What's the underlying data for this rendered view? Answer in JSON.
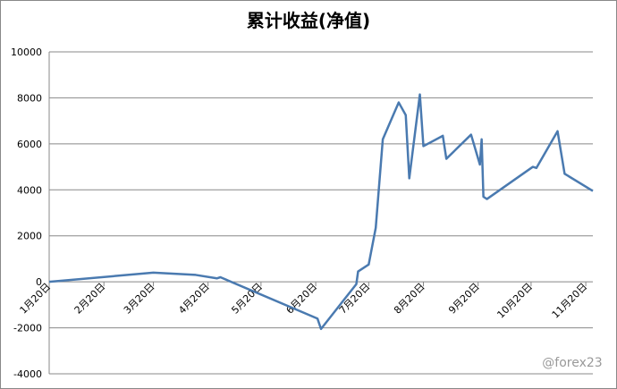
{
  "chart_data": {
    "type": "line",
    "title": "累计收益(净值)",
    "x": [
      "01-20",
      "03-20",
      "04-13",
      "04-25",
      "04-27",
      "06-21",
      "06-23",
      "07-13",
      "07-14",
      "07-20",
      "07-24",
      "07-28",
      "08-06",
      "08-10",
      "08-12",
      "08-18",
      "08-20",
      "08-31",
      "09-02",
      "09-16",
      "09-21",
      "09-22",
      "09-23",
      "09-25",
      "10-21",
      "10-23",
      "11-04",
      "11-08",
      "11-24"
    ],
    "series": [
      {
        "name": "累计收益",
        "color": "#4a7ab0",
        "values": [
          0,
          400,
          300,
          150,
          200,
          -1600,
          -2050,
          -100,
          450,
          750,
          2350,
          6200,
          7800,
          7250,
          4500,
          8150,
          5900,
          6350,
          5350,
          6400,
          5100,
          6200,
          3700,
          3600,
          5000,
          4950,
          6550,
          4700,
          3950
        ]
      }
    ],
    "xlim": [
      "01-20",
      "11-24"
    ],
    "xticks": [
      {
        "value": "01-20",
        "label": "1月20日"
      },
      {
        "value": "02-20",
        "label": "2月20日"
      },
      {
        "value": "03-20",
        "label": "3月20日"
      },
      {
        "value": "04-20",
        "label": "4月20日"
      },
      {
        "value": "05-20",
        "label": "5月20日"
      },
      {
        "value": "06-20",
        "label": "6月20日"
      },
      {
        "value": "07-20",
        "label": "7月20日"
      },
      {
        "value": "08-20",
        "label": "8月20日"
      },
      {
        "value": "09-20",
        "label": "9月20日"
      },
      {
        "value": "10-20",
        "label": "10月20日"
      },
      {
        "value": "11-20",
        "label": "11月20日"
      }
    ],
    "ylim": [
      -4000,
      10000
    ],
    "yticks": [
      -4000,
      -2000,
      0,
      2000,
      4000,
      6000,
      8000,
      10000
    ],
    "grid": true
  },
  "watermark": "@forex23"
}
